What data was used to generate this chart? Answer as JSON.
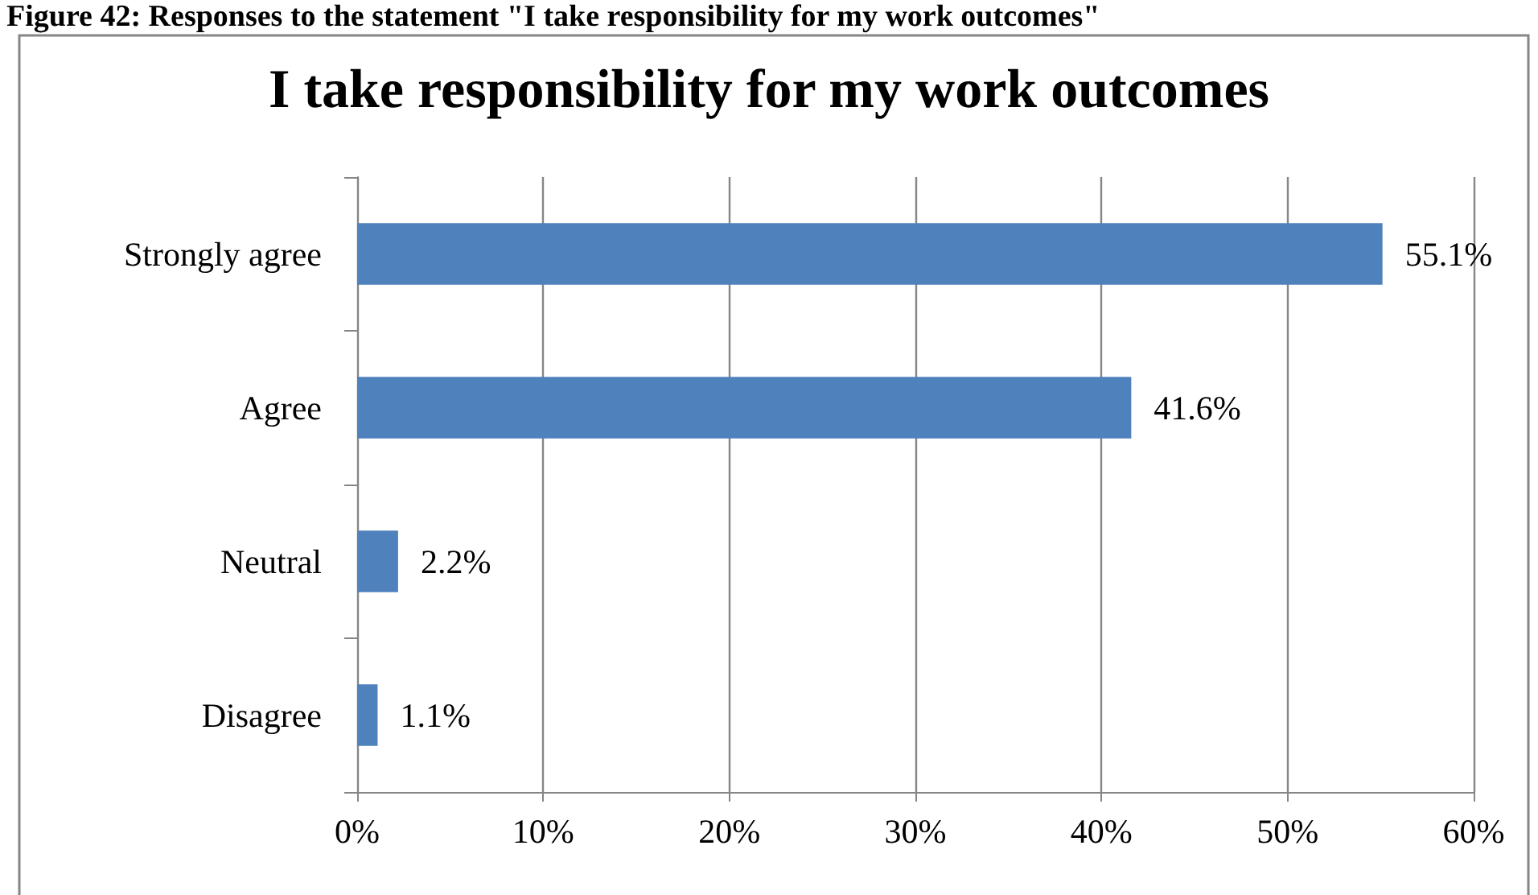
{
  "chart_data": {
    "type": "bar",
    "orientation": "horizontal",
    "title": "I take responsibility for my work outcomes",
    "annotations": [
      "Figure 42: Responses to the statement \"I take responsibility for my work outcomes\""
    ],
    "categories": [
      "Strongly agree",
      "Agree",
      "Neutral",
      "Disagree"
    ],
    "values": [
      55.1,
      41.6,
      2.2,
      1.1
    ],
    "color": "#4f81bd",
    "value_labels": [
      "55.1%",
      "41.6%",
      "2.2%",
      "1.1%"
    ],
    "xlim": [
      0,
      60
    ],
    "xticks": [
      {
        "value": 0,
        "label": "0%"
      },
      {
        "value": 10,
        "label": "10%"
      },
      {
        "value": 20,
        "label": "20%"
      },
      {
        "value": 30,
        "label": "30%"
      },
      {
        "value": 40,
        "label": "40%"
      },
      {
        "value": 50,
        "label": "50%"
      },
      {
        "value": 60,
        "label": "60%"
      }
    ],
    "grid": "x"
  }
}
